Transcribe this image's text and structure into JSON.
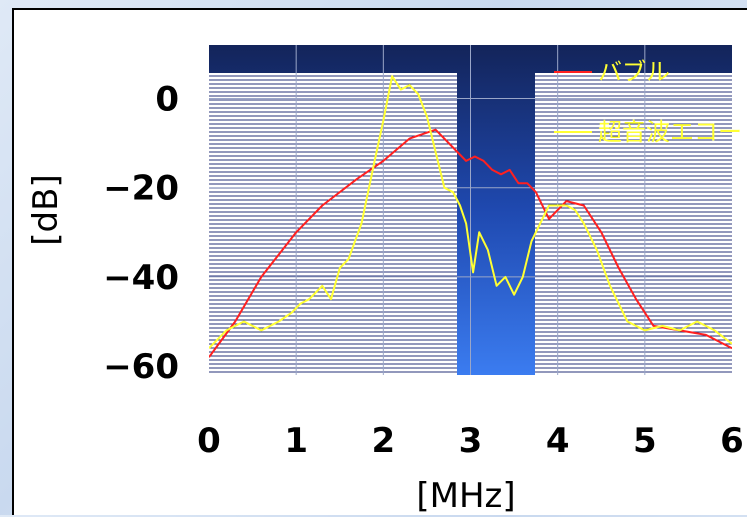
{
  "chart_data": {
    "type": "line",
    "xlabel": "[MHz]",
    "ylabel": "[dB]",
    "xlim": [
      0,
      6
    ],
    "ylim": [
      -62,
      12
    ],
    "x_ticks": [
      "0",
      "1",
      "2",
      "3",
      "4",
      "5",
      "6"
    ],
    "y_ticks": [
      "0",
      "−20",
      "−40",
      "−60"
    ],
    "series": [
      {
        "name": "バブル",
        "color": "#ff2020",
        "x": [
          0,
          0.3,
          0.6,
          1.0,
          1.3,
          1.7,
          2.0,
          2.3,
          2.6,
          2.85,
          2.95,
          3.05,
          3.15,
          3.25,
          3.35,
          3.45,
          3.55,
          3.65,
          3.75,
          3.9,
          4.1,
          4.3,
          4.5,
          4.7,
          4.9,
          5.1,
          5.4,
          5.7,
          6.0
        ],
        "y": [
          -58,
          -50,
          -40,
          -30,
          -24,
          -18,
          -14,
          -9,
          -7,
          -12,
          -14,
          -13,
          -14,
          -16,
          -17,
          -16,
          -19,
          -19,
          -21,
          -27,
          -23,
          -24,
          -30,
          -38,
          -45,
          -51,
          -52,
          -53,
          -56
        ]
      },
      {
        "name": "超音波エコー",
        "color": "#ffff33",
        "x": [
          0,
          0.2,
          0.4,
          0.6,
          0.8,
          0.95,
          1.05,
          1.15,
          1.3,
          1.4,
          1.5,
          1.6,
          1.75,
          1.9,
          2.0,
          2.1,
          2.2,
          2.3,
          2.4,
          2.5,
          2.6,
          2.7,
          2.8,
          2.88,
          2.95,
          3.03,
          3.1,
          3.2,
          3.3,
          3.4,
          3.5,
          3.6,
          3.7,
          3.8,
          3.9,
          4.0,
          4.1,
          4.2,
          4.3,
          4.45,
          4.6,
          4.8,
          5.0,
          5.2,
          5.4,
          5.6,
          5.8,
          6.0
        ],
        "y": [
          -56,
          -52,
          -50,
          -52,
          -50,
          -48,
          -46,
          -45,
          -42,
          -45,
          -38,
          -36,
          -28,
          -14,
          -5,
          5,
          2,
          3,
          1,
          -4,
          -12,
          -20,
          -21,
          -24,
          -28,
          -39,
          -30,
          -34,
          -42,
          -40,
          -44,
          -40,
          -32,
          -28,
          -24,
          -24,
          -24,
          -25,
          -28,
          -34,
          -42,
          -50,
          -52,
          -51,
          -52,
          -50,
          -52,
          -55
        ]
      }
    ],
    "legend_position": "top-right",
    "grid": true
  }
}
